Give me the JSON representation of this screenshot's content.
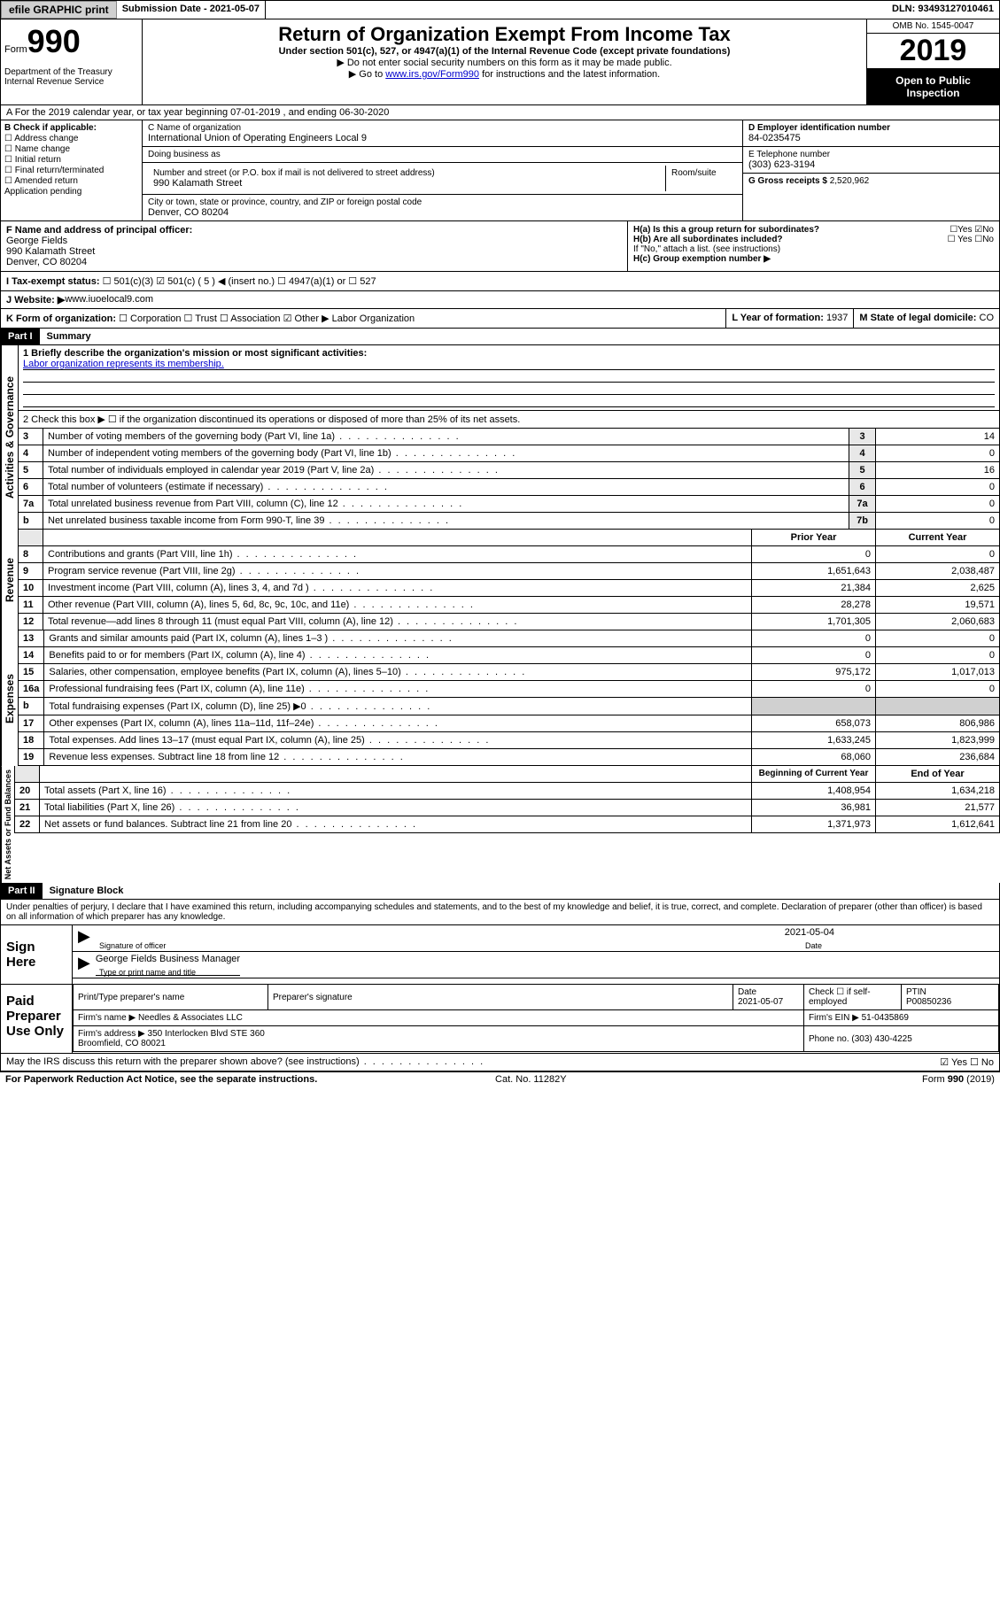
{
  "topbar": {
    "efile": "efile GRAPHIC print",
    "sub_label": "Submission Date - 2021-05-07",
    "dln": "DLN: 93493127010461"
  },
  "header": {
    "form_label": "Form",
    "form_num": "990",
    "dept": "Department of the Treasury\nInternal Revenue Service",
    "title": "Return of Organization Exempt From Income Tax",
    "sub": "Under section 501(c), 527, or 4947(a)(1) of the Internal Revenue Code (except private foundations)",
    "note1": "▶ Do not enter social security numbers on this form as it may be made public.",
    "note2_pre": "▶ Go to ",
    "note2_link": "www.irs.gov/Form990",
    "note2_post": " for instructions and the latest information.",
    "omb": "OMB No. 1545-0047",
    "year": "2019",
    "open": "Open to Public Inspection"
  },
  "rowA": "A For the 2019 calendar year, or tax year beginning 07-01-2019   , and ending 06-30-2020",
  "B": {
    "header": "B Check if applicable:",
    "items": [
      "☐ Address change",
      "☐ Name change",
      "☐ Initial return",
      "☐ Final return/terminated",
      "☐ Amended return",
      "Application pending"
    ]
  },
  "C": {
    "name_label": "C Name of organization",
    "name": "International Union of Operating Engineers Local 9",
    "dba_label": "Doing business as",
    "addr_label": "Number and street (or P.O. box if mail is not delivered to street address)",
    "room_label": "Room/suite",
    "addr": "990 Kalamath Street",
    "city_label": "City or town, state or province, country, and ZIP or foreign postal code",
    "city": "Denver, CO  80204"
  },
  "D": {
    "label": "D Employer identification number",
    "val": "84-0235475"
  },
  "E": {
    "label": "E Telephone number",
    "val": "(303) 623-3194"
  },
  "G": {
    "label": "G Gross receipts $",
    "val": "2,520,962"
  },
  "F": {
    "label": "F  Name and address of principal officer:",
    "name": "George Fields",
    "addr1": "990 Kalamath Street",
    "addr2": "Denver, CO  80204"
  },
  "H": {
    "a": "H(a)  Is this a group return for subordinates?",
    "a_yes": "☐Yes",
    "a_no": "☑No",
    "b": "H(b)  Are all subordinates included?",
    "b_yes": "☐ Yes",
    "b_no": "☐No",
    "b_note": "If \"No,\" attach a list. (see instructions)",
    "c": "H(c)  Group exemption number ▶"
  },
  "I": {
    "label": "I   Tax-exempt status:",
    "opts": "☐ 501(c)(3)   ☑ 501(c) ( 5 ) ◀ (insert no.)   ☐ 4947(a)(1) or   ☐ 527"
  },
  "J": {
    "label": "J   Website: ▶",
    "val": " www.iuoelocal9.com"
  },
  "K": {
    "label": "K Form of organization:",
    "opts": "☐ Corporation  ☐ Trust  ☐ Association  ☑ Other ▶ Labor Organization"
  },
  "L": {
    "label": "L Year of formation: ",
    "val": "1937"
  },
  "M": {
    "label": "M State of legal domicile: ",
    "val": "CO"
  },
  "part1": {
    "header": "Part I",
    "title": "Summary"
  },
  "summary": {
    "line1_label": "1  Briefly describe the organization's mission or most significant activities:",
    "line1_val": "Labor organization represents its membership.",
    "line2": "2   Check this box ▶ ☐  if the organization discontinued its operations or disposed of more than 25% of its net assets.",
    "rows_simple": [
      {
        "n": "3",
        "t": "Number of voting members of the governing body (Part VI, line 1a)",
        "b": "3",
        "v": "14"
      },
      {
        "n": "4",
        "t": "Number of independent voting members of the governing body (Part VI, line 1b)",
        "b": "4",
        "v": "0"
      },
      {
        "n": "5",
        "t": "Total number of individuals employed in calendar year 2019 (Part V, line 2a)",
        "b": "5",
        "v": "16"
      },
      {
        "n": "6",
        "t": "Total number of volunteers (estimate if necessary)",
        "b": "6",
        "v": "0"
      },
      {
        "n": "7a",
        "t": "Total unrelated business revenue from Part VIII, column (C), line 12",
        "b": "7a",
        "v": "0"
      },
      {
        "n": "b",
        "t": "Net unrelated business taxable income from Form 990-T, line 39",
        "b": "7b",
        "v": "0"
      }
    ],
    "col_prior": "Prior Year",
    "col_curr": "Current Year",
    "rev": [
      {
        "n": "8",
        "t": "Contributions and grants (Part VIII, line 1h)",
        "p": "0",
        "c": "0"
      },
      {
        "n": "9",
        "t": "Program service revenue (Part VIII, line 2g)",
        "p": "1,651,643",
        "c": "2,038,487"
      },
      {
        "n": "10",
        "t": "Investment income (Part VIII, column (A), lines 3, 4, and 7d )",
        "p": "21,384",
        "c": "2,625"
      },
      {
        "n": "11",
        "t": "Other revenue (Part VIII, column (A), lines 5, 6d, 8c, 9c, 10c, and 11e)",
        "p": "28,278",
        "c": "19,571"
      },
      {
        "n": "12",
        "t": "Total revenue—add lines 8 through 11 (must equal Part VIII, column (A), line 12)",
        "p": "1,701,305",
        "c": "2,060,683"
      }
    ],
    "exp": [
      {
        "n": "13",
        "t": "Grants and similar amounts paid (Part IX, column (A), lines 1–3 )",
        "p": "0",
        "c": "0"
      },
      {
        "n": "14",
        "t": "Benefits paid to or for members (Part IX, column (A), line 4)",
        "p": "0",
        "c": "0"
      },
      {
        "n": "15",
        "t": "Salaries, other compensation, employee benefits (Part IX, column (A), lines 5–10)",
        "p": "975,172",
        "c": "1,017,013"
      },
      {
        "n": "16a",
        "t": "Professional fundraising fees (Part IX, column (A), line 11e)",
        "p": "0",
        "c": "0"
      },
      {
        "n": "b",
        "t": "Total fundraising expenses (Part IX, column (D), line 25) ▶0",
        "p": "",
        "c": "",
        "shade": true
      },
      {
        "n": "17",
        "t": "Other expenses (Part IX, column (A), lines 11a–11d, 11f–24e)",
        "p": "658,073",
        "c": "806,986"
      },
      {
        "n": "18",
        "t": "Total expenses. Add lines 13–17 (must equal Part IX, column (A), line 25)",
        "p": "1,633,245",
        "c": "1,823,999"
      },
      {
        "n": "19",
        "t": "Revenue less expenses. Subtract line 18 from line 12",
        "p": "68,060",
        "c": "236,684"
      }
    ],
    "col_beg": "Beginning of Current Year",
    "col_end": "End of Year",
    "net": [
      {
        "n": "20",
        "t": "Total assets (Part X, line 16)",
        "p": "1,408,954",
        "c": "1,634,218"
      },
      {
        "n": "21",
        "t": "Total liabilities (Part X, line 26)",
        "p": "36,981",
        "c": "21,577"
      },
      {
        "n": "22",
        "t": "Net assets or fund balances. Subtract line 21 from line 20",
        "p": "1,371,973",
        "c": "1,612,641"
      }
    ]
  },
  "vert": {
    "ag": "Activities & Governance",
    "rev": "Revenue",
    "exp": "Expenses",
    "net": "Net Assets or Fund Balances"
  },
  "part2": {
    "header": "Part II",
    "title": "Signature Block"
  },
  "perjury": "Under penalties of perjury, I declare that I have examined this return, including accompanying schedules and statements, and to the best of my knowledge and belief, it is true, correct, and complete. Declaration of preparer (other than officer) is based on all information of which preparer has any knowledge.",
  "sign": {
    "here": "Sign Here",
    "sig_label": "Signature of officer",
    "date_label": "Date",
    "date_val": "2021-05-04",
    "name": "George Fields  Business Manager",
    "name_label": "Type or print name and title"
  },
  "prep": {
    "here": "Paid Preparer Use Only",
    "name_label": "Print/Type preparer's name",
    "sig_label": "Preparer's signature",
    "date_label": "Date",
    "date_val": "2021-05-07",
    "check_label": "Check ☐ if self-employed",
    "ptin_label": "PTIN",
    "ptin": "P00850236",
    "firm_name_label": "Firm's name    ▶",
    "firm_name": "Needles & Associates LLC",
    "firm_ein_label": "Firm's EIN ▶",
    "firm_ein": "51-0435869",
    "firm_addr_label": "Firm's address ▶",
    "firm_addr": "350 Interlocken Blvd STE 360\nBroomfield, CO  80021",
    "phone_label": "Phone no.",
    "phone": "(303) 430-4225"
  },
  "discuss": {
    "q": "May the IRS discuss this return with the preparer shown above? (see instructions)",
    "yes": "☑ Yes",
    "no": "☐ No"
  },
  "footer": {
    "l": "For Paperwork Reduction Act Notice, see the separate instructions.",
    "m": "Cat. No. 11282Y",
    "r": "Form 990 (2019)"
  }
}
